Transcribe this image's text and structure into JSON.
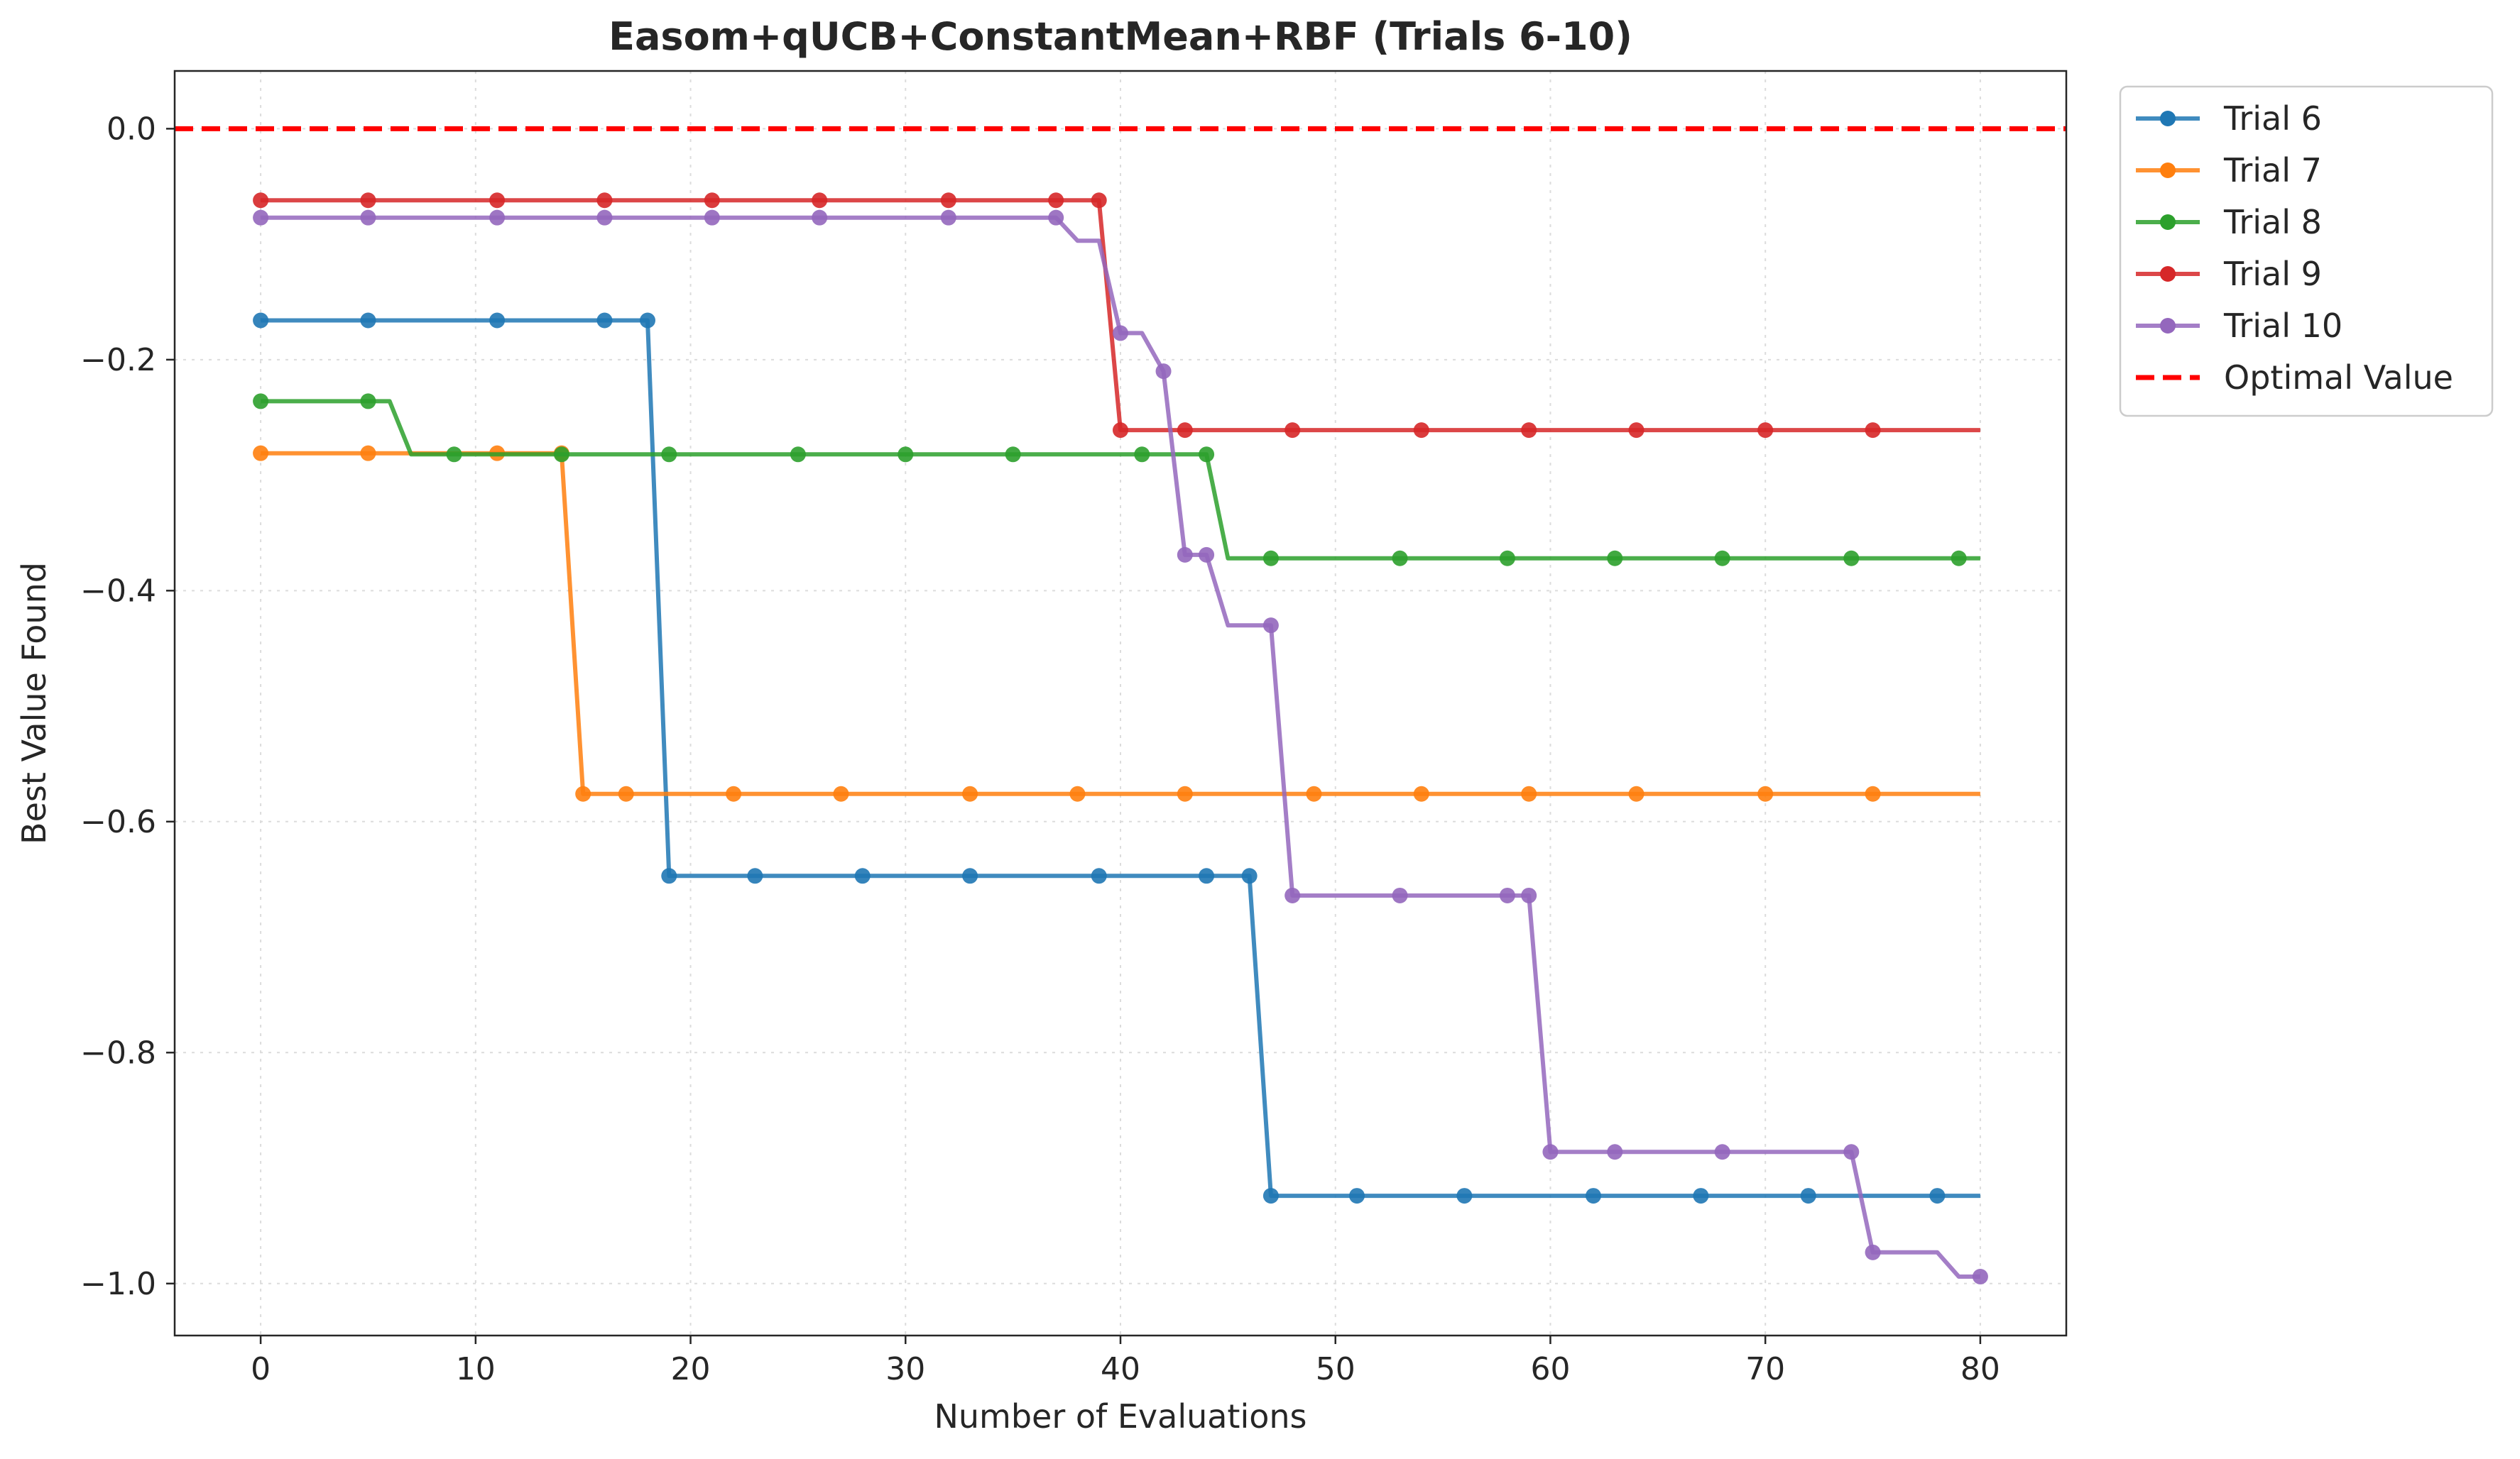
{
  "chart_data": {
    "type": "line",
    "title": "Easom+qUCB+ConstantMean+RBF (Trials 6-10)",
    "xlabel": "Number of Evaluations",
    "ylabel": "Best Value Found",
    "xlim": [
      -4,
      84
    ],
    "ylim": [
      -1.045,
      0.05
    ],
    "xticks": [
      0,
      10,
      20,
      30,
      40,
      50,
      60,
      70,
      80
    ],
    "yticks": [
      0.0,
      -0.2,
      -0.4,
      -0.6,
      -0.8,
      -1.0
    ],
    "xtick_labels": [
      "0",
      "10",
      "20",
      "30",
      "40",
      "50",
      "60",
      "70",
      "80"
    ],
    "ytick_labels": [
      "0.0",
      "−0.2",
      "−0.4",
      "−0.6",
      "−0.8",
      "−1.0"
    ],
    "grid": true,
    "legend_position": "outside-top-right",
    "series": [
      {
        "name": "Trial 6",
        "color": "#1f77b4",
        "points": [
          [
            0,
            -0.166
          ],
          [
            18,
            -0.166
          ],
          [
            19,
            -0.647
          ],
          [
            46,
            -0.647
          ],
          [
            47,
            -0.924
          ],
          [
            80,
            -0.924
          ]
        ],
        "markers": [
          0,
          5,
          11,
          16,
          18,
          19,
          23,
          28,
          33,
          39,
          44,
          46,
          47,
          51,
          56,
          62,
          67,
          72,
          78
        ]
      },
      {
        "name": "Trial 7",
        "color": "#ff7f0e",
        "points": [
          [
            0,
            -0.281
          ],
          [
            14,
            -0.281
          ],
          [
            15,
            -0.576
          ],
          [
            80,
            -0.576
          ]
        ],
        "markers": [
          0,
          5,
          11,
          14,
          15,
          17,
          22,
          27,
          33,
          38,
          43,
          49,
          54,
          59,
          64,
          70,
          75
        ]
      },
      {
        "name": "Trial 8",
        "color": "#2ca02c",
        "points": [
          [
            0,
            -0.236
          ],
          [
            6,
            -0.236
          ],
          [
            7,
            -0.282
          ],
          [
            44,
            -0.282
          ],
          [
            45,
            -0.372
          ],
          [
            80,
            -0.372
          ]
        ],
        "markers": [
          0,
          5,
          9,
          14,
          19,
          25,
          30,
          35,
          41,
          44,
          47,
          53,
          58,
          63,
          68,
          74,
          79
        ]
      },
      {
        "name": "Trial 9",
        "color": "#d62728",
        "points": [
          [
            0,
            -0.062
          ],
          [
            39,
            -0.062
          ],
          [
            40,
            -0.261
          ],
          [
            80,
            -0.261
          ]
        ],
        "markers": [
          0,
          5,
          11,
          16,
          21,
          26,
          32,
          37,
          39,
          40,
          43,
          48,
          54,
          59,
          64,
          70,
          75
        ]
      },
      {
        "name": "Trial 10",
        "color": "#9467bd",
        "points": [
          [
            0,
            -0.077
          ],
          [
            37,
            -0.077
          ],
          [
            38,
            -0.097
          ],
          [
            39,
            -0.097
          ],
          [
            40,
            -0.177
          ],
          [
            41,
            -0.177
          ],
          [
            42,
            -0.21
          ],
          [
            43,
            -0.369
          ],
          [
            44,
            -0.369
          ],
          [
            45,
            -0.43
          ],
          [
            47,
            -0.43
          ],
          [
            48,
            -0.664
          ],
          [
            59,
            -0.664
          ],
          [
            60,
            -0.886
          ],
          [
            74,
            -0.886
          ],
          [
            75,
            -0.973
          ],
          [
            78,
            -0.973
          ],
          [
            79,
            -0.994
          ],
          [
            80,
            -0.994
          ]
        ],
        "markers": [
          0,
          5,
          11,
          16,
          21,
          26,
          32,
          37,
          40,
          42,
          43,
          44,
          47,
          48,
          53,
          58,
          59,
          60,
          63,
          68,
          74,
          75,
          80
        ]
      }
    ],
    "reference_line": {
      "name": "Optimal Value",
      "y": 0.0,
      "color": "#ff0000"
    }
  }
}
